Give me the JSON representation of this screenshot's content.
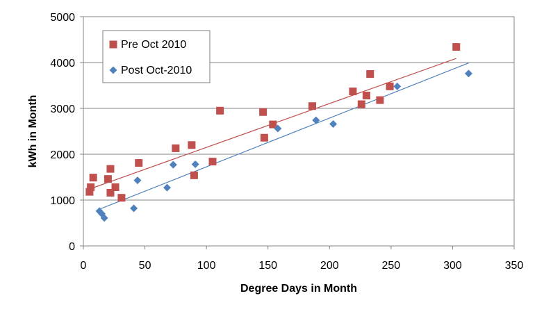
{
  "chart_data": {
    "type": "scatter",
    "xlabel": "Degree Days in Month",
    "ylabel": "kWh in Month",
    "xlim": [
      0,
      350
    ],
    "ylim": [
      0,
      5000
    ],
    "xticks": [
      0,
      50,
      100,
      150,
      200,
      250,
      300,
      350
    ],
    "yticks": [
      0,
      1000,
      2000,
      3000,
      4000,
      5000
    ],
    "xtick_labels": [
      "0",
      "50",
      "100",
      "150",
      "200",
      "250",
      "300",
      "350"
    ],
    "ytick_labels": [
      "0",
      "1000",
      "2000",
      "3000",
      "4000",
      "5000"
    ],
    "grid": "horizontal",
    "legend_position": "top-left",
    "series": [
      {
        "name": "Pre Oct 2010",
        "marker": "square",
        "color": "#c0504d",
        "points": [
          [
            5,
            1180
          ],
          [
            6,
            1280
          ],
          [
            8,
            1490
          ],
          [
            20,
            1460
          ],
          [
            22,
            1680
          ],
          [
            22,
            1160
          ],
          [
            26,
            1280
          ],
          [
            31,
            1050
          ],
          [
            45,
            1810
          ],
          [
            75,
            2130
          ],
          [
            88,
            2200
          ],
          [
            90,
            1540
          ],
          [
            105,
            1840
          ],
          [
            111,
            2950
          ],
          [
            146,
            2920
          ],
          [
            147,
            2360
          ],
          [
            154,
            2650
          ],
          [
            186,
            3050
          ],
          [
            219,
            3370
          ],
          [
            226,
            3090
          ],
          [
            230,
            3280
          ],
          [
            233,
            3750
          ],
          [
            241,
            3180
          ],
          [
            249,
            3480
          ],
          [
            303,
            4340
          ]
        ],
        "trendline": {
          "x": [
            6,
            303
          ],
          "y": [
            1250,
            4090
          ]
        }
      },
      {
        "name": "Post Oct-2010",
        "marker": "diamond",
        "color": "#4f81bd",
        "points": [
          [
            13,
            760
          ],
          [
            15,
            700
          ],
          [
            17,
            610
          ],
          [
            41,
            820
          ],
          [
            44,
            1430
          ],
          [
            68,
            1270
          ],
          [
            73,
            1770
          ],
          [
            91,
            1780
          ],
          [
            158,
            2560
          ],
          [
            189,
            2740
          ],
          [
            203,
            2660
          ],
          [
            255,
            3480
          ],
          [
            313,
            3760
          ]
        ],
        "trendline": {
          "x": [
            13,
            313
          ],
          "y": [
            800,
            3990
          ]
        }
      }
    ]
  }
}
